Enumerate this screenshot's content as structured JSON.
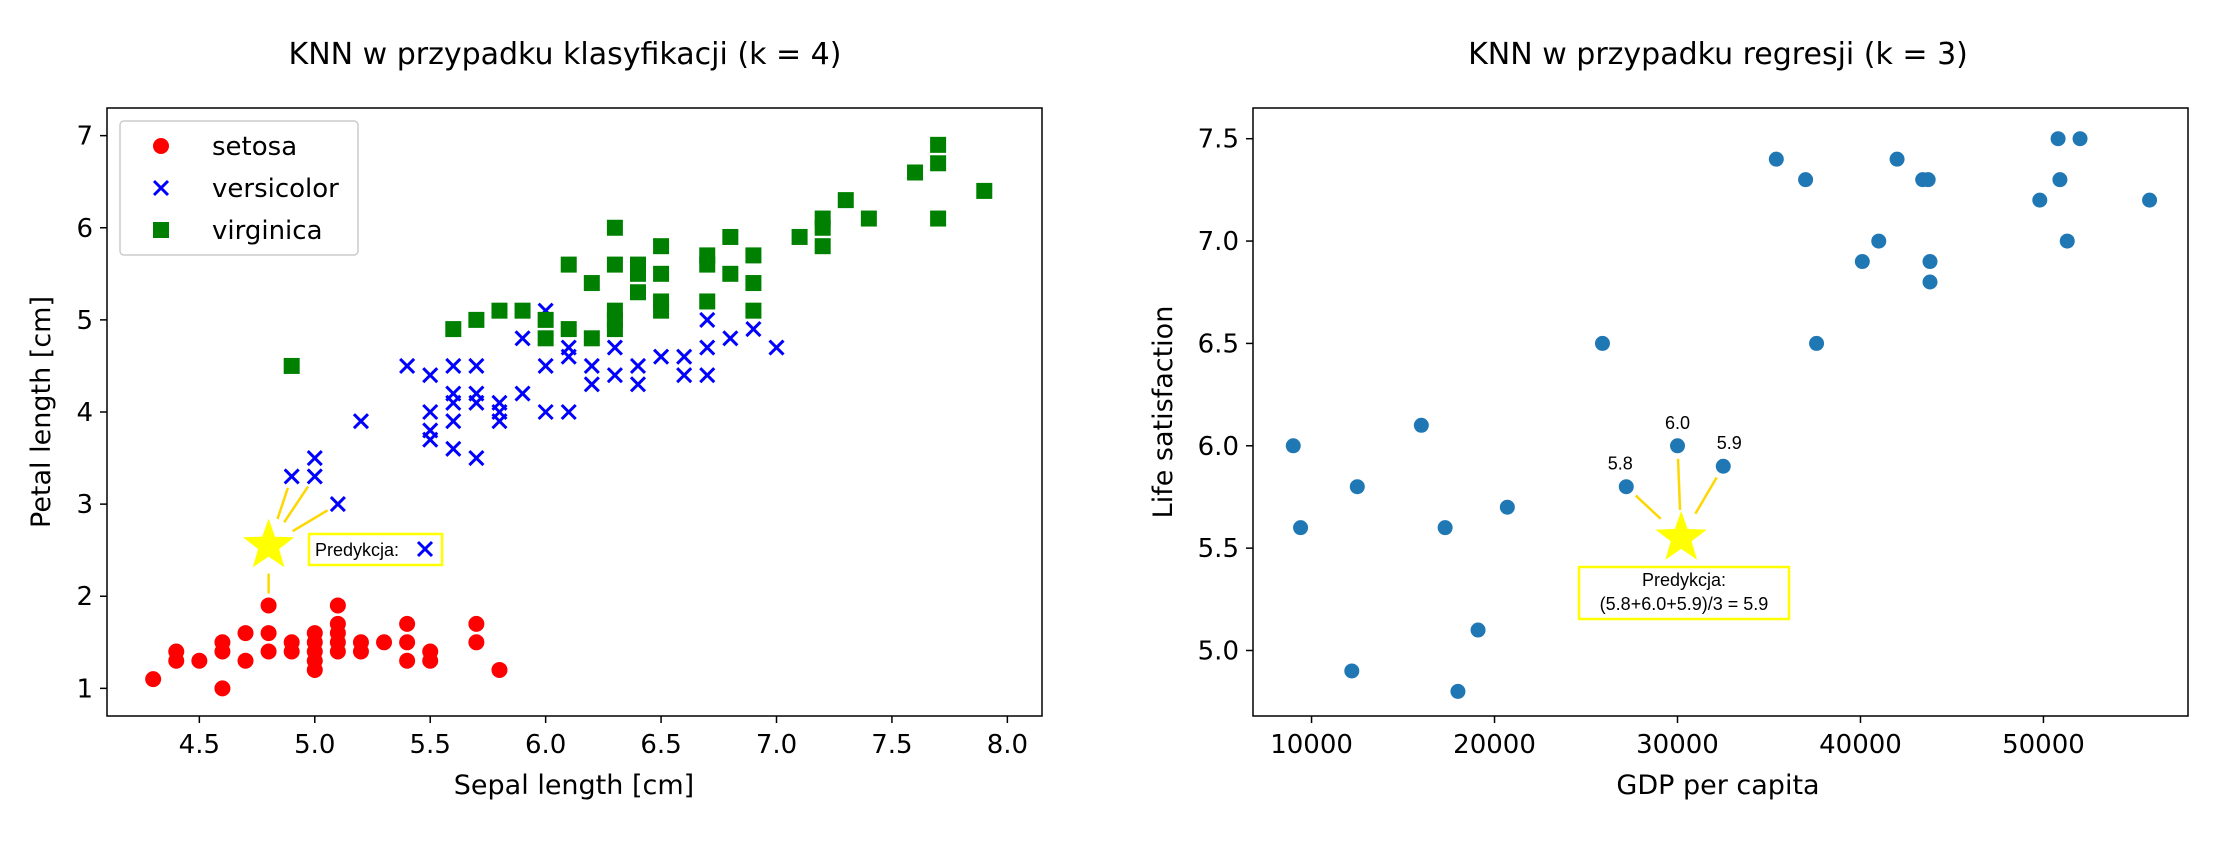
{
  "colors": {
    "setosa": "#ff0000",
    "versicolor": "#0000ff",
    "virginica": "#008000",
    "regression_points": "#1f77b4",
    "prediction_star": "#ffff00",
    "annotation_line": "#ffd700"
  },
  "chart_data": [
    {
      "type": "scatter",
      "title": "KNN w przypadku klasyfikacji (k = 4)",
      "xlabel": "Sepal length [cm]",
      "ylabel": "Petal length [cm]",
      "xlim": [
        4.1,
        8.15
      ],
      "ylim": [
        0.7,
        7.3
      ],
      "xticks": [
        "4.5",
        "5.0",
        "5.5",
        "6.0",
        "6.5",
        "7.0",
        "7.5",
        "8.0"
      ],
      "yticks": [
        "1",
        "2",
        "3",
        "4",
        "5",
        "6",
        "7"
      ],
      "legend_position": "top-left",
      "prediction_label": "Predykcja:",
      "prediction_point": {
        "x": 4.8,
        "y": 2.55
      },
      "neighbors": [
        {
          "x": 4.9,
          "y": 3.3
        },
        {
          "x": 5.0,
          "y": 3.3
        },
        {
          "x": 5.1,
          "y": 3.0
        },
        {
          "x": 4.8,
          "y": 1.9
        }
      ],
      "series": [
        {
          "name": "setosa",
          "marker": "circle",
          "points": [
            [
              4.3,
              1.1
            ],
            [
              4.4,
              1.3
            ],
            [
              4.4,
              1.4
            ],
            [
              4.5,
              1.3
            ],
            [
              4.6,
              1.0
            ],
            [
              4.6,
              1.4
            ],
            [
              4.6,
              1.5
            ],
            [
              4.7,
              1.3
            ],
            [
              4.7,
              1.6
            ],
            [
              4.8,
              1.4
            ],
            [
              4.8,
              1.6
            ],
            [
              4.8,
              1.9
            ],
            [
              4.9,
              1.4
            ],
            [
              4.9,
              1.5
            ],
            [
              5.0,
              1.2
            ],
            [
              5.0,
              1.3
            ],
            [
              5.0,
              1.4
            ],
            [
              5.0,
              1.5
            ],
            [
              5.0,
              1.6
            ],
            [
              5.1,
              1.4
            ],
            [
              5.1,
              1.5
            ],
            [
              5.1,
              1.6
            ],
            [
              5.1,
              1.7
            ],
            [
              5.1,
              1.9
            ],
            [
              5.2,
              1.4
            ],
            [
              5.2,
              1.5
            ],
            [
              5.3,
              1.5
            ],
            [
              5.4,
              1.3
            ],
            [
              5.4,
              1.5
            ],
            [
              5.4,
              1.7
            ],
            [
              5.5,
              1.3
            ],
            [
              5.5,
              1.4
            ],
            [
              5.7,
              1.5
            ],
            [
              5.7,
              1.7
            ],
            [
              5.8,
              1.2
            ]
          ]
        },
        {
          "name": "versicolor",
          "marker": "x",
          "points": [
            [
              4.9,
              3.3
            ],
            [
              5.0,
              3.3
            ],
            [
              5.0,
              3.5
            ],
            [
              5.1,
              3.0
            ],
            [
              5.2,
              3.9
            ],
            [
              5.4,
              4.5
            ],
            [
              5.5,
              3.7
            ],
            [
              5.5,
              3.8
            ],
            [
              5.5,
              4.0
            ],
            [
              5.5,
              4.4
            ],
            [
              5.6,
              3.6
            ],
            [
              5.6,
              3.9
            ],
            [
              5.6,
              4.1
            ],
            [
              5.6,
              4.2
            ],
            [
              5.6,
              4.5
            ],
            [
              5.7,
              3.5
            ],
            [
              5.7,
              4.1
            ],
            [
              5.7,
              4.2
            ],
            [
              5.7,
              4.5
            ],
            [
              5.8,
              3.9
            ],
            [
              5.8,
              4.0
            ],
            [
              5.8,
              4.1
            ],
            [
              5.9,
              4.2
            ],
            [
              5.9,
              4.8
            ],
            [
              6.0,
              4.0
            ],
            [
              6.0,
              4.5
            ],
            [
              6.0,
              5.1
            ],
            [
              6.1,
              4.0
            ],
            [
              6.1,
              4.6
            ],
            [
              6.1,
              4.7
            ],
            [
              6.2,
              4.3
            ],
            [
              6.2,
              4.5
            ],
            [
              6.3,
              4.4
            ],
            [
              6.3,
              4.7
            ],
            [
              6.3,
              4.9
            ],
            [
              6.4,
              4.3
            ],
            [
              6.4,
              4.5
            ],
            [
              6.5,
              4.6
            ],
            [
              6.6,
              4.4
            ],
            [
              6.6,
              4.6
            ],
            [
              6.7,
              4.4
            ],
            [
              6.7,
              4.7
            ],
            [
              6.7,
              5.0
            ],
            [
              6.8,
              4.8
            ],
            [
              6.9,
              4.9
            ],
            [
              7.0,
              4.7
            ]
          ]
        },
        {
          "name": "virginica",
          "marker": "square",
          "points": [
            [
              4.9,
              4.5
            ],
            [
              5.6,
              4.9
            ],
            [
              5.7,
              5.0
            ],
            [
              5.8,
              5.1
            ],
            [
              5.9,
              5.1
            ],
            [
              6.0,
              4.8
            ],
            [
              6.0,
              5.0
            ],
            [
              6.1,
              4.9
            ],
            [
              6.1,
              5.6
            ],
            [
              6.2,
              4.8
            ],
            [
              6.2,
              5.4
            ],
            [
              6.3,
              4.9
            ],
            [
              6.3,
              5.0
            ],
            [
              6.3,
              5.1
            ],
            [
              6.3,
              5.6
            ],
            [
              6.3,
              6.0
            ],
            [
              6.4,
              5.3
            ],
            [
              6.4,
              5.5
            ],
            [
              6.4,
              5.6
            ],
            [
              6.5,
              5.1
            ],
            [
              6.5,
              5.2
            ],
            [
              6.5,
              5.5
            ],
            [
              6.5,
              5.8
            ],
            [
              6.7,
              5.2
            ],
            [
              6.7,
              5.6
            ],
            [
              6.7,
              5.7
            ],
            [
              6.8,
              5.5
            ],
            [
              6.8,
              5.9
            ],
            [
              6.9,
              5.1
            ],
            [
              6.9,
              5.4
            ],
            [
              6.9,
              5.7
            ],
            [
              7.1,
              5.9
            ],
            [
              7.2,
              5.8
            ],
            [
              7.2,
              6.0
            ],
            [
              7.2,
              6.1
            ],
            [
              7.3,
              6.3
            ],
            [
              7.4,
              6.1
            ],
            [
              7.6,
              6.6
            ],
            [
              7.7,
              6.1
            ],
            [
              7.7,
              6.7
            ],
            [
              7.7,
              6.9
            ],
            [
              7.9,
              6.4
            ]
          ]
        }
      ]
    },
    {
      "type": "scatter",
      "title": "KNN w przypadku regresji (k = 3)",
      "xlabel": "GDP per capita",
      "ylabel": "Life satisfaction",
      "xlim": [
        6800,
        57900
      ],
      "ylim": [
        4.68,
        7.65
      ],
      "xticks": [
        "10000",
        "20000",
        "30000",
        "40000",
        "50000"
      ],
      "yticks": [
        "5.0",
        "5.5",
        "6.0",
        "6.5",
        "7.0",
        "7.5"
      ],
      "prediction_box_lines": [
        "Predykcja:",
        "(5.8+6.0+5.9)/3 = 5.9"
      ],
      "prediction_point": {
        "x": 30200,
        "y": 5.55
      },
      "neighbors": [
        {
          "x": 27200,
          "y": 5.8,
          "label": "5.8"
        },
        {
          "x": 30000,
          "y": 6.0,
          "label": "6.0"
        },
        {
          "x": 32500,
          "y": 5.9,
          "label": "5.9"
        }
      ],
      "points": [
        [
          9000,
          6.0
        ],
        [
          9400,
          5.6
        ],
        [
          12200,
          4.9
        ],
        [
          12500,
          5.8
        ],
        [
          16000,
          6.1
        ],
        [
          17300,
          5.6
        ],
        [
          18000,
          4.8
        ],
        [
          19100,
          5.1
        ],
        [
          20700,
          5.7
        ],
        [
          25900,
          6.5
        ],
        [
          27200,
          5.8
        ],
        [
          30000,
          6.0
        ],
        [
          32500,
          5.9
        ],
        [
          35400,
          7.4
        ],
        [
          37000,
          7.3
        ],
        [
          37600,
          6.5
        ],
        [
          40100,
          6.9
        ],
        [
          41000,
          7.0
        ],
        [
          42000,
          7.4
        ],
        [
          43400,
          7.3
        ],
        [
          43700,
          7.3
        ],
        [
          43800,
          6.9
        ],
        [
          43800,
          6.8
        ],
        [
          49800,
          7.2
        ],
        [
          50800,
          7.5
        ],
        [
          50900,
          7.3
        ],
        [
          51300,
          7.0
        ],
        [
          52000,
          7.5
        ],
        [
          55800,
          7.2
        ]
      ]
    }
  ]
}
